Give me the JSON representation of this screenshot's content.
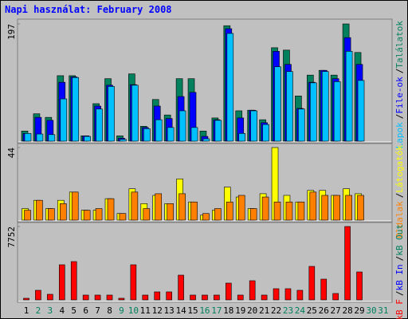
{
  "title": "Napi használat: February 2008",
  "categories": [
    "1",
    "2",
    "3",
    "4",
    "5",
    "6",
    "7",
    "8",
    "9",
    "10",
    "11",
    "12",
    "13",
    "14",
    "15",
    "16",
    "17",
    "18",
    "19",
    "20",
    "21",
    "22",
    "23",
    "24",
    "25",
    "26",
    "27",
    "28",
    "29",
    "30",
    "31"
  ],
  "category_colors": [
    "#000000",
    "#00805c",
    "#00805c",
    "#000000",
    "#000000",
    "#000000",
    "#000000",
    "#000000",
    "#00805c",
    "#00805c",
    "#000000",
    "#000000",
    "#000000",
    "#000000",
    "#000000",
    "#00805c",
    "#00805c",
    "#000000",
    "#000000",
    "#000000",
    "#000000",
    "#000000",
    "#00805c",
    "#00805c",
    "#000000",
    "#000000",
    "#000000",
    "#000000",
    "#000000",
    "#00805c",
    "#00805c"
  ],
  "legend_separator": "/",
  "chart_data": [
    {
      "type": "bar",
      "ylim": [
        0,
        197
      ],
      "yticks": [
        197
      ],
      "series": [
        {
          "name": "Találatok",
          "color": "#00805c",
          "values": [
            17,
            46,
            40,
            110,
            110,
            9,
            63,
            105,
            9,
            113,
            25,
            70,
            44,
            105,
            105,
            17,
            39,
            194,
            51,
            52,
            36,
            157,
            153,
            76,
            111,
            119,
            111,
            197,
            149,
            null,
            null
          ]
        },
        {
          "name": "File-ok",
          "color": "#0000ff",
          "values": [
            13,
            40,
            35,
            99,
            108,
            9,
            59,
            94,
            5,
            95,
            23,
            59,
            38,
            75,
            82,
            8,
            36,
            189,
            39,
            52,
            31,
            151,
            129,
            55,
            99,
            119,
            105,
            174,
            129,
            null,
            null
          ]
        },
        {
          "name": "Lapok",
          "color": "#00c0ff",
          "values": [
            13,
            12,
            11,
            71,
            107,
            8,
            54,
            92,
            3,
            94,
            21,
            36,
            23,
            51,
            23,
            4,
            35,
            181,
            13,
            51,
            28,
            125,
            117,
            54,
            98,
            117,
            100,
            151,
            102,
            null,
            null
          ]
        }
      ]
    },
    {
      "type": "bar",
      "ylim": [
        0,
        44
      ],
      "yticks": [
        44
      ],
      "series": [
        {
          "name": "Látogatók",
          "color": "#ffff00",
          "values": [
            7,
            12,
            7,
            12,
            17,
            6,
            6,
            13,
            4,
            19,
            10,
            15,
            10,
            25,
            11,
            3,
            6,
            20,
            14,
            7,
            16,
            44,
            15,
            11,
            18,
            18,
            15,
            19,
            16,
            null,
            null
          ]
        },
        {
          "name": "Oldalak",
          "color": "#ff8000",
          "values": [
            6,
            12,
            7,
            10,
            17,
            6,
            7,
            13,
            4,
            17,
            7,
            16,
            10,
            16,
            11,
            4,
            7,
            11,
            15,
            7,
            14,
            11,
            11,
            11,
            17,
            15,
            15,
            15,
            15,
            null,
            null
          ]
        }
      ]
    },
    {
      "type": "bar",
      "ylim": [
        0,
        7752
      ],
      "yticks": [
        7752
      ],
      "series": [
        {
          "name": "kB Out",
          "color": "#00805c",
          "values": [
            null,
            null,
            null,
            null,
            null,
            null,
            null,
            null,
            null,
            null,
            null,
            null,
            null,
            null,
            null,
            null,
            null,
            null,
            null,
            null,
            null,
            null,
            null,
            null,
            null,
            null,
            null,
            null,
            null,
            null,
            null
          ]
        },
        {
          "name": "kB In",
          "color": "#0000ff",
          "values": [
            null,
            null,
            null,
            null,
            null,
            null,
            null,
            null,
            null,
            null,
            null,
            null,
            null,
            null,
            null,
            null,
            null,
            null,
            null,
            null,
            null,
            null,
            null,
            null,
            null,
            null,
            null,
            null,
            null,
            null,
            null
          ]
        },
        {
          "name": "kB F",
          "color": "#ff0000",
          "values": [
            169,
            1011,
            590,
            3707,
            4044,
            506,
            506,
            506,
            169,
            3707,
            506,
            843,
            843,
            2612,
            506,
            506,
            506,
            1770,
            506,
            2022,
            506,
            1180,
            1180,
            1011,
            3539,
            2191,
            674,
            7752,
            2949,
            null,
            null
          ]
        }
      ]
    }
  ]
}
